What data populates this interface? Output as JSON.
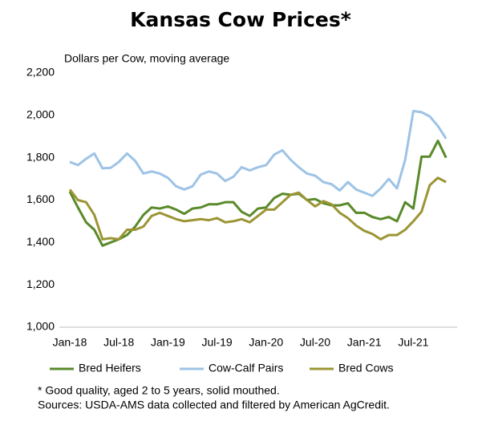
{
  "chart_data": {
    "type": "line",
    "title": "Kansas Cow Prices*",
    "y_label": "Dollars per Cow, moving average",
    "footnotes": [
      "* Good quality,  aged 2 to 5 years, solid mouthed.",
      "Sources: USDA-AMS data collected and filtered by American AgCredit."
    ],
    "categories": [
      "Jan-18",
      null,
      null,
      null,
      null,
      null,
      "Jul-18",
      null,
      null,
      null,
      null,
      null,
      "Jan-19",
      null,
      null,
      null,
      null,
      null,
      "Jul-19",
      null,
      null,
      null,
      null,
      null,
      "Jan-20",
      null,
      null,
      null,
      null,
      null,
      "Jul-20",
      null,
      null,
      null,
      null,
      null,
      "Jan-21",
      null,
      null,
      null,
      null,
      null,
      "Jul-21",
      null,
      null,
      null,
      null
    ],
    "series": [
      {
        "name": "Bred Heifers",
        "color": "#5a8a2a",
        "values": [
          1640,
          1565,
          1495,
          1460,
          1385,
          1400,
          1415,
          1435,
          1475,
          1530,
          1565,
          1560,
          1570,
          1555,
          1535,
          1560,
          1565,
          1580,
          1580,
          1590,
          1590,
          1545,
          1525,
          1560,
          1565,
          1610,
          1630,
          1625,
          1630,
          1600,
          1605,
          1585,
          1575,
          1575,
          1585,
          1540,
          1540,
          1520,
          1510,
          1520,
          1500,
          1590,
          1560,
          1805,
          1805,
          1880,
          1800
        ]
      },
      {
        "name": "Cow-Calf Pairs",
        "color": "#9dc3e6",
        "values": [
          1780,
          1765,
          1795,
          1820,
          1750,
          1752,
          1780,
          1820,
          1785,
          1725,
          1735,
          1725,
          1705,
          1665,
          1650,
          1665,
          1720,
          1735,
          1725,
          1690,
          1710,
          1755,
          1740,
          1755,
          1765,
          1815,
          1835,
          1790,
          1755,
          1725,
          1715,
          1685,
          1675,
          1645,
          1685,
          1650,
          1635,
          1620,
          1655,
          1700,
          1655,
          1790,
          2020,
          2015,
          1995,
          1950,
          1890
        ]
      },
      {
        "name": "Bred Cows",
        "color": "#9c9535",
        "values": [
          1650,
          1600,
          1590,
          1530,
          1415,
          1420,
          1415,
          1460,
          1460,
          1475,
          1525,
          1540,
          1525,
          1510,
          1500,
          1505,
          1510,
          1505,
          1515,
          1495,
          1500,
          1510,
          1495,
          1525,
          1555,
          1555,
          1590,
          1625,
          1635,
          1600,
          1570,
          1595,
          1580,
          1540,
          1515,
          1480,
          1455,
          1440,
          1415,
          1435,
          1435,
          1460,
          1500,
          1545,
          1670,
          1705,
          1685
        ]
      }
    ],
    "ylim": [
      1000,
      2200
    ],
    "yticks": [
      {
        "value": 1000,
        "label": "1,000"
      },
      {
        "value": 1200,
        "label": "1,200"
      },
      {
        "value": 1400,
        "label": "1,400"
      },
      {
        "value": 1600,
        "label": "1,600"
      },
      {
        "value": 1800,
        "label": "1,800"
      },
      {
        "value": 2000,
        "label": "2,000"
      },
      {
        "value": 2200,
        "label": "2,200"
      }
    ],
    "legend": "bottom"
  }
}
